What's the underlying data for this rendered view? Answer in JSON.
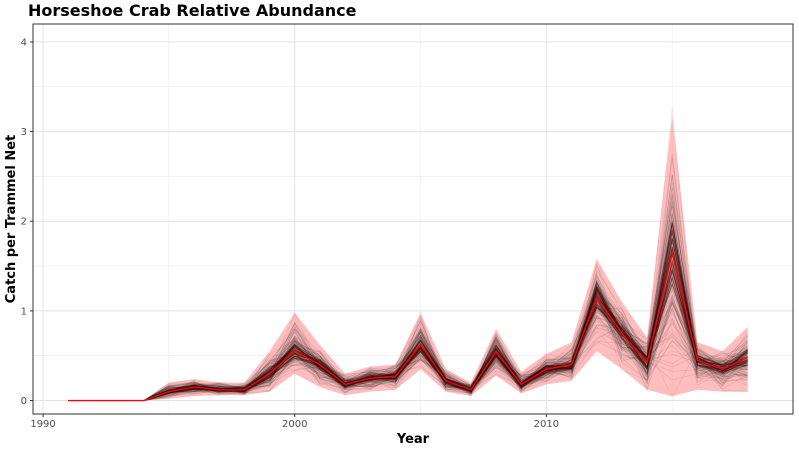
{
  "chart_data": {
    "type": "line",
    "title": "Horseshoe Crab Relative Abundance",
    "xlabel": "Year",
    "ylabel": "Catch per Trammel Net",
    "xlim": [
      1989.6,
      2019.8
    ],
    "ylim": [
      -0.15,
      4.2
    ],
    "x_ticks": [
      1990,
      2000,
      2010
    ],
    "y_ticks": [
      0,
      1,
      2,
      3,
      4
    ],
    "grid": true,
    "legend": "none",
    "series": [
      {
        "role": "estimate",
        "x": [
          1991,
          1992,
          1993,
          1994,
          1995,
          1996,
          1997,
          1998,
          1999,
          2000,
          2001,
          2002,
          2003,
          2004,
          2005,
          2006,
          2007,
          2008,
          2009,
          2010,
          2011,
          2012,
          2013,
          2014,
          2015,
          2016,
          2017,
          2018
        ],
        "values": [
          0,
          0,
          0,
          0,
          0.1,
          0.15,
          0.12,
          0.12,
          0.3,
          0.55,
          0.4,
          0.18,
          0.25,
          0.27,
          0.62,
          0.22,
          0.12,
          0.55,
          0.18,
          0.35,
          0.4,
          1.15,
          0.75,
          0.42,
          1.65,
          0.45,
          0.35,
          0.48
        ]
      },
      {
        "role": "interval_lower",
        "x": [
          1991,
          1992,
          1993,
          1994,
          1995,
          1996,
          1997,
          1998,
          1999,
          2000,
          2001,
          2002,
          2003,
          2004,
          2005,
          2006,
          2007,
          2008,
          2009,
          2010,
          2011,
          2012,
          2013,
          2014,
          2015,
          2016,
          2017,
          2018
        ],
        "values": [
          0,
          0,
          0,
          0,
          0.02,
          0.05,
          0.06,
          0.06,
          0.1,
          0.3,
          0.15,
          0.06,
          0.1,
          0.12,
          0.35,
          0.1,
          0.05,
          0.28,
          0.08,
          0.18,
          0.22,
          0.55,
          0.35,
          0.12,
          0.05,
          0.12,
          0.1,
          0.1
        ]
      },
      {
        "role": "interval_upper",
        "x": [
          1991,
          1992,
          1993,
          1994,
          1995,
          1996,
          1997,
          1998,
          1999,
          2000,
          2001,
          2002,
          2003,
          2004,
          2005,
          2006,
          2007,
          2008,
          2009,
          2010,
          2011,
          2012,
          2013,
          2014,
          2015,
          2016,
          2017,
          2018
        ],
        "values": [
          0,
          0,
          0,
          0,
          0.2,
          0.24,
          0.2,
          0.2,
          0.55,
          0.98,
          0.62,
          0.3,
          0.38,
          0.4,
          0.98,
          0.35,
          0.2,
          0.8,
          0.32,
          0.52,
          0.65,
          1.58,
          1.1,
          0.7,
          3.18,
          0.65,
          0.55,
          0.82
        ]
      }
    ]
  },
  "colors": {
    "estimate_line": "#ff0000",
    "interval_fill": "#ff9a9a",
    "replicate_lines": "#000000",
    "grid": "#ebebeb",
    "panel_border": "#333333"
  }
}
